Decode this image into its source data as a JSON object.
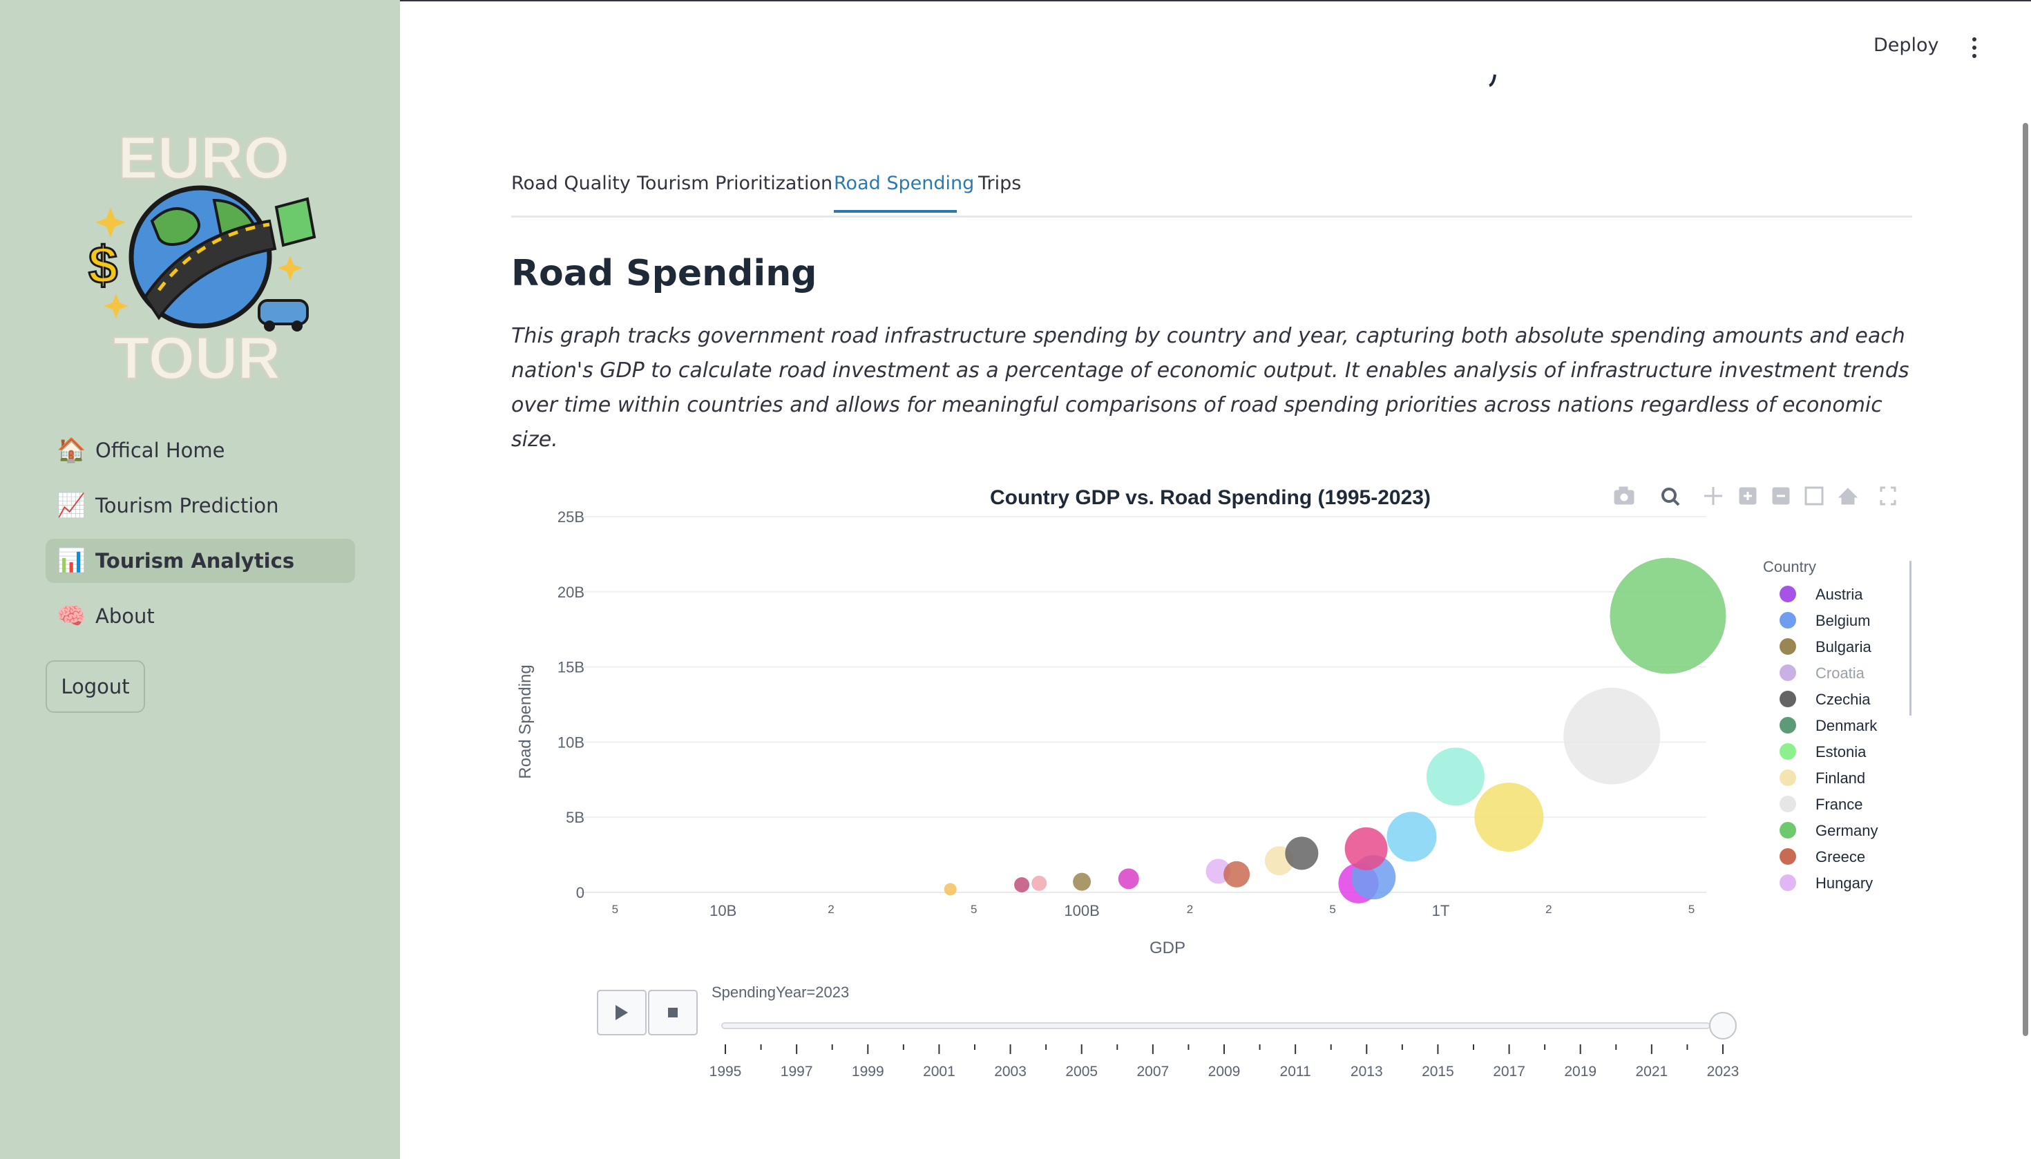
{
  "sidebar": {
    "logo": {
      "top_text": "EURO",
      "bottom_text": "TOUR"
    },
    "items": [
      {
        "emoji": "🏠",
        "label": "Offical Home",
        "active": false
      },
      {
        "emoji": "📈",
        "label": "Tourism Prediction",
        "active": false
      },
      {
        "emoji": "📊",
        "label": "Tourism Analytics",
        "active": true
      },
      {
        "emoji": "🧠",
        "label": "About",
        "active": false
      }
    ],
    "logout_label": "Logout"
  },
  "header": {
    "deploy_label": "Deploy",
    "menu_icon": "kebab-menu-icon"
  },
  "tabs": [
    {
      "label": "Road Quality",
      "active": false
    },
    {
      "label": "Tourism Prioritization",
      "active": false
    },
    {
      "label": "Road Spending",
      "active": true
    },
    {
      "label": "Trips",
      "active": false
    }
  ],
  "main": {
    "title": "Road Spending",
    "description": "This graph tracks government road infrastructure spending by country and year, capturing both absolute spending amounts and each nation's GDP to calculate road investment as a percentage of economic output. It enables analysis of infrastructure investment trends over time within countries and allows for meaningful comparisons of road spending priorities across nations regardless of economic size."
  },
  "toolbar_icons": [
    "camera-icon",
    "zoom-icon",
    "pan-icon",
    "zoom-in-icon",
    "zoom-out-icon",
    "autoscale-icon",
    "reset-axes-icon",
    "fullscreen-icon"
  ],
  "colors": {
    "accent": "#2a7ab0",
    "sidebar_bg": "#c6d6c4"
  },
  "chart_data": {
    "type": "scatter",
    "title": "Country GDP vs. Road Spending (1995-2023)",
    "xlabel": "GDP",
    "ylabel": "Road Spending",
    "x_scale": "log",
    "xlim": [
      4000000000.0,
      5500000000000.0
    ],
    "ylim": [
      -1200000000.0,
      25000000000.0
    ],
    "y_ticks": [
      {
        "value": 0,
        "label": "0"
      },
      {
        "value": 5000000000.0,
        "label": "5B"
      },
      {
        "value": 10000000000.0,
        "label": "10B"
      },
      {
        "value": 15000000000.0,
        "label": "15B"
      },
      {
        "value": 20000000000.0,
        "label": "20B"
      },
      {
        "value": 25000000000.0,
        "label": "25B"
      }
    ],
    "x_ticks": [
      {
        "value": 5000000000.0,
        "label": "5",
        "minor": true
      },
      {
        "value": 10000000000.0,
        "label": "10B",
        "minor": false
      },
      {
        "value": 20000000000.0,
        "label": "2",
        "minor": true
      },
      {
        "value": 50000000000.0,
        "label": "5",
        "minor": true
      },
      {
        "value": 100000000000.0,
        "label": "100B",
        "minor": false
      },
      {
        "value": 200000000000.0,
        "label": "2",
        "minor": true
      },
      {
        "value": 500000000000.0,
        "label": "5",
        "minor": true
      },
      {
        "value": 1000000000000.0,
        "label": "1T",
        "minor": false
      },
      {
        "value": 2000000000000.0,
        "label": "2",
        "minor": true
      },
      {
        "value": 5000000000000.0,
        "label": "5",
        "minor": true
      }
    ],
    "grid": true,
    "legend_title": "Country",
    "legend_position": "right",
    "legend": [
      {
        "name": "Austria",
        "color": "#a653e8",
        "dimmed": false
      },
      {
        "name": "Belgium",
        "color": "#6f9ef0",
        "dimmed": false
      },
      {
        "name": "Bulgaria",
        "color": "#9a8650",
        "dimmed": false
      },
      {
        "name": "Croatia",
        "color": "#c9b1e6",
        "dimmed": true
      },
      {
        "name": "Czechia",
        "color": "#646464",
        "dimmed": false
      },
      {
        "name": "Denmark",
        "color": "#5c9a78",
        "dimmed": false
      },
      {
        "name": "Estonia",
        "color": "#8cf08c",
        "dimmed": false
      },
      {
        "name": "Finland",
        "color": "#f5e3b0",
        "dimmed": false
      },
      {
        "name": "France",
        "color": "#e6e6e6",
        "dimmed": false
      },
      {
        "name": "Germany",
        "color": "#6cc96c",
        "dimmed": false
      },
      {
        "name": "Greece",
        "color": "#c96b52",
        "dimmed": false
      },
      {
        "name": "Hungary",
        "color": "#e0b6f5",
        "dimmed": false
      }
    ],
    "points": [
      {
        "gdp": 43000000000.0,
        "spending": 200000000.0,
        "size": 9,
        "color": "#f5c05a"
      },
      {
        "gdp": 68000000000.0,
        "spending": 500000000.0,
        "size": 11,
        "color": "#c0507a"
      },
      {
        "gdp": 76000000000.0,
        "spending": 600000000.0,
        "size": 11,
        "color": "#f0a8b0"
      },
      {
        "gdp": 100000000000.0,
        "spending": 700000000.0,
        "size": 13,
        "color": "#9a8650"
      },
      {
        "gdp": 135000000000.0,
        "spending": 900000000.0,
        "size": 15,
        "color": "#d940c8"
      },
      {
        "gdp": 240000000000.0,
        "spending": 1400000000.0,
        "size": 18,
        "color": "#e0b6f5"
      },
      {
        "gdp": 270000000000.0,
        "spending": 1200000000.0,
        "size": 19,
        "color": "#c96b52"
      },
      {
        "gdp": 355000000000.0,
        "spending": 2100000000.0,
        "size": 21,
        "color": "#f5e3b0"
      },
      {
        "gdp": 410000000000.0,
        "spending": 2600000000.0,
        "size": 24,
        "color": "#646464"
      },
      {
        "gdp": 590000000000.0,
        "spending": 600000000.0,
        "size": 29,
        "color": "#e040e8"
      },
      {
        "gdp": 650000000000.0,
        "spending": 1000000000.0,
        "size": 32,
        "color": "#6f9ef0"
      },
      {
        "gdp": 620000000000.0,
        "spending": 2900000000.0,
        "size": 31,
        "color": "#e64b8c"
      },
      {
        "gdp": 830000000000.0,
        "spending": 3700000000.0,
        "size": 36,
        "color": "#7fd4f5"
      },
      {
        "gdp": 1100000000000.0,
        "spending": 7700000000.0,
        "size": 42,
        "color": "#9af0dc"
      },
      {
        "gdp": 1550000000000.0,
        "spending": 5000000000.0,
        "size": 50,
        "color": "#f5e06e"
      },
      {
        "gdp": 3000000000000.0,
        "spending": 10400000000.0,
        "size": 70,
        "color": "#e8e8e8"
      },
      {
        "gdp": 4300000000000.0,
        "spending": 18400000000.0,
        "size": 84,
        "color": "#7bcf7b"
      }
    ],
    "animation": {
      "frame_label": "SpendingYear=2023",
      "current_year": 2023,
      "years_labeled": [
        "1995",
        "1997",
        "1999",
        "2001",
        "2003",
        "2005",
        "2007",
        "2009",
        "2011",
        "2013",
        "2015",
        "2017",
        "2019",
        "2021",
        "2023"
      ],
      "year_min": 1995,
      "year_max": 2023,
      "play_icon": "play-icon",
      "stop_icon": "stop-icon"
    }
  }
}
